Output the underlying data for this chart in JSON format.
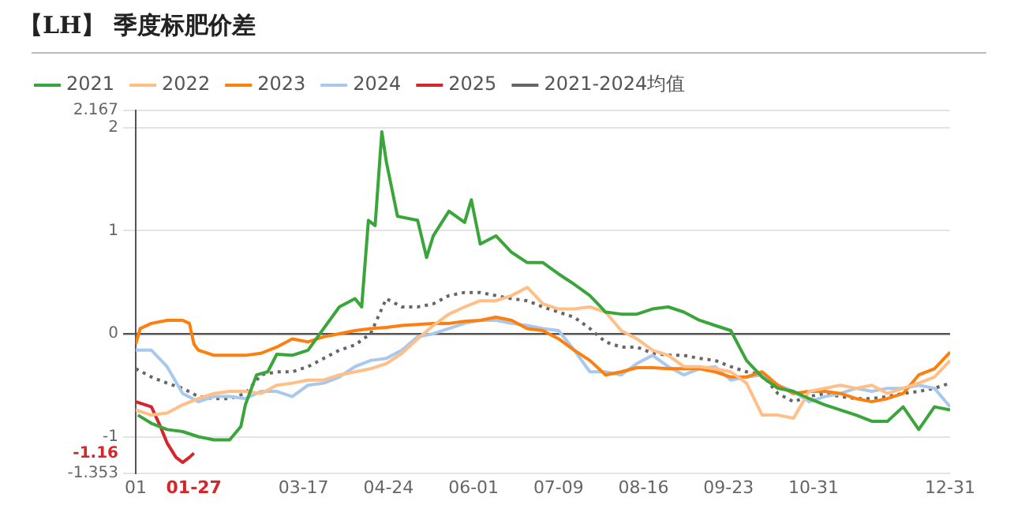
{
  "chart_data": {
    "type": "line",
    "title": "【LH】 季度标肥价差",
    "x": [
      "--01-01",
      "--01-08",
      "--01-15",
      "--01-22",
      "--01-29",
      "--02-05",
      "--02-12",
      "--02-19",
      "--02-26",
      "--03-05",
      "--03-12",
      "--03-19",
      "--03-26",
      "--04-02",
      "--04-09",
      "--04-16",
      "--04-23",
      "--04-30",
      "--05-07",
      "--05-14",
      "--05-21",
      "--05-28",
      "--06-04",
      "--06-11",
      "--06-18",
      "--06-25",
      "--07-02",
      "--07-09",
      "--07-16",
      "--07-23",
      "--07-30",
      "--08-06",
      "--08-13",
      "--08-20",
      "--08-27",
      "--09-03",
      "--09-10",
      "--09-17",
      "--09-24",
      "--10-01",
      "--10-08",
      "--10-15",
      "--10-22",
      "--10-29",
      "--11-05",
      "--11-12",
      "--11-19",
      "--11-26",
      "--12-03",
      "--12-10",
      "--12-17",
      "--12-24",
      "--12-31"
    ],
    "series": [
      {
        "name": "2021",
        "color": "#3aa53a",
        "x": [
          "--01-02",
          "--01-08",
          "--01-15",
          "--01-22",
          "--01-29",
          "--02-05",
          "--02-12",
          "--02-17",
          "--02-19",
          "--02-24",
          "--03-01",
          "--03-05",
          "--03-12",
          "--03-19",
          "--03-26",
          "--04-02",
          "--04-09",
          "--04-12",
          "--04-15",
          "--04-18",
          "--04-21",
          "--04-23",
          "--04-28",
          "--05-07",
          "--05-11",
          "--05-14",
          "--05-21",
          "--05-28",
          "--05-31",
          "--06-04",
          "--06-11",
          "--06-18",
          "--06-25",
          "--07-02",
          "--07-09",
          "--07-16",
          "--07-23",
          "--07-30",
          "--08-06",
          "--08-13",
          "--08-20",
          "--08-27",
          "--09-03",
          "--09-10",
          "--09-17",
          "--09-24",
          "--10-01",
          "--10-08",
          "--10-15",
          "--10-22",
          "--10-29",
          "--11-05",
          "--11-12",
          "--11-19",
          "--11-26",
          "--12-03",
          "--12-10",
          "--12-17",
          "--12-24",
          "--12-31"
        ],
        "values": [
          -0.79,
          -0.87,
          -0.93,
          -0.95,
          -1.0,
          -1.03,
          -1.03,
          -0.9,
          -0.69,
          -0.4,
          -0.37,
          -0.2,
          -0.21,
          -0.16,
          0.05,
          0.26,
          0.34,
          0.26,
          1.1,
          1.05,
          1.96,
          1.67,
          1.14,
          1.1,
          0.74,
          0.95,
          1.19,
          1.08,
          1.3,
          0.87,
          0.95,
          0.79,
          0.69,
          0.69,
          0.58,
          0.48,
          0.37,
          0.21,
          0.19,
          0.19,
          0.24,
          0.26,
          0.21,
          0.13,
          0.08,
          0.03,
          -0.26,
          -0.42,
          -0.53,
          -0.56,
          -0.63,
          -0.69,
          -0.74,
          -0.79,
          -0.85,
          -0.85,
          -0.71,
          -0.93,
          -0.71,
          -0.74
        ]
      },
      {
        "name": "2022",
        "color": "#ffbf86",
        "values": [
          -0.74,
          -0.79,
          -0.77,
          -0.69,
          -0.63,
          -0.58,
          -0.56,
          -0.56,
          -0.58,
          -0.5,
          -0.48,
          -0.45,
          -0.45,
          -0.4,
          -0.37,
          -0.34,
          -0.29,
          -0.19,
          -0.05,
          0.08,
          0.19,
          0.26,
          0.32,
          0.32,
          0.37,
          0.45,
          0.29,
          0.24,
          0.24,
          0.26,
          0.21,
          0.03,
          -0.05,
          -0.16,
          -0.21,
          -0.32,
          -0.32,
          -0.34,
          -0.37,
          -0.48,
          -0.79,
          -0.79,
          -0.82,
          -0.56,
          -0.53,
          -0.5,
          -0.53,
          -0.5,
          -0.58,
          -0.53,
          -0.48,
          -0.42,
          -0.26
        ]
      },
      {
        "name": "2023",
        "color": "#ff7f0e",
        "x": [
          "--01-01",
          "--01-03",
          "--01-08",
          "--01-15",
          "--01-22",
          "--01-25",
          "--01-27",
          "--01-29",
          "--02-05",
          "--02-12",
          "--02-19",
          "--02-26",
          "--03-05",
          "--03-12",
          "--03-19",
          "--03-26",
          "--04-02",
          "--04-09",
          "--04-16",
          "--04-23",
          "--04-30",
          "--05-07",
          "--05-14",
          "--05-21",
          "--05-28",
          "--06-04",
          "--06-11",
          "--06-18",
          "--06-25",
          "--07-02",
          "--07-09",
          "--07-16",
          "--07-23",
          "--07-30",
          "--08-06",
          "--08-13",
          "--08-20",
          "--08-27",
          "--09-03",
          "--09-10",
          "--09-17",
          "--09-24",
          "--10-01",
          "--10-08",
          "--10-15",
          "--10-22",
          "--10-29",
          "--11-05",
          "--11-12",
          "--11-19",
          "--11-26",
          "--12-03",
          "--12-10",
          "--12-17",
          "--12-24",
          "--12-31"
        ],
        "values": [
          -0.1,
          0.05,
          0.1,
          0.13,
          0.13,
          0.1,
          -0.1,
          -0.16,
          -0.21,
          -0.21,
          -0.21,
          -0.19,
          -0.13,
          -0.05,
          -0.08,
          -0.03,
          0,
          0.03,
          0.05,
          0.06,
          0.08,
          0.09,
          0.1,
          0.1,
          0.12,
          0.13,
          0.16,
          0.13,
          0.05,
          0.03,
          -0.05,
          -0.16,
          -0.26,
          -0.4,
          -0.37,
          -0.33,
          -0.33,
          -0.34,
          -0.34,
          -0.34,
          -0.37,
          -0.42,
          -0.42,
          -0.37,
          -0.5,
          -0.58,
          -0.56,
          -0.56,
          -0.58,
          -0.63,
          -0.66,
          -0.63,
          -0.58,
          -0.4,
          -0.34,
          -0.18
        ]
      },
      {
        "name": "2024",
        "color": "#a9c8ee",
        "values": [
          -0.16,
          -0.16,
          -0.32,
          -0.58,
          -0.66,
          -0.61,
          -0.61,
          -0.63,
          -0.56,
          -0.56,
          -0.61,
          -0.5,
          -0.48,
          -0.42,
          -0.32,
          -0.26,
          -0.24,
          -0.16,
          -0.03,
          0,
          0.05,
          0.1,
          0.13,
          0.13,
          0.1,
          0.08,
          0.05,
          0.03,
          -0.16,
          -0.37,
          -0.37,
          -0.4,
          -0.29,
          -0.21,
          -0.32,
          -0.4,
          -0.34,
          -0.32,
          -0.45,
          -0.42,
          -0.4,
          -0.5,
          -0.56,
          -0.66,
          -0.61,
          -0.58,
          -0.53,
          -0.56,
          -0.53,
          -0.53,
          -0.5,
          -0.53,
          -0.71
        ]
      },
      {
        "name": "2025",
        "color": "#d7262b",
        "x": [
          "--01-01",
          "--01-08",
          "--01-12",
          "--01-15",
          "--01-19",
          "--01-22",
          "--01-25",
          "--01-27"
        ],
        "values": [
          -0.66,
          -0.71,
          -0.9,
          -1.06,
          -1.2,
          -1.25,
          -1.2,
          -1.16
        ]
      },
      {
        "name": "2021-2024均值",
        "color": "#666666",
        "line_style": "dotted",
        "values": [
          -0.34,
          -0.42,
          -0.48,
          -0.53,
          -0.61,
          -0.63,
          -0.63,
          -0.58,
          -0.4,
          -0.37,
          -0.37,
          -0.32,
          -0.24,
          -0.16,
          -0.11,
          0,
          0.34,
          0.26,
          0.26,
          0.29,
          0.37,
          0.4,
          0.4,
          0.37,
          0.34,
          0.32,
          0.26,
          0.21,
          0.16,
          0.05,
          -0.08,
          -0.13,
          -0.13,
          -0.19,
          -0.21,
          -0.21,
          -0.24,
          -0.26,
          -0.32,
          -0.37,
          -0.4,
          -0.58,
          -0.66,
          -0.61,
          -0.58,
          -0.61,
          -0.63,
          -0.63,
          -0.61,
          -0.58,
          -0.56,
          -0.53,
          -0.48
        ]
      }
    ],
    "xlim": [
      "--01-01",
      "--12-31"
    ],
    "xticks": [
      {
        "value": "--01-01",
        "label": "01"
      },
      {
        "value": "--01-27",
        "label": "01-27"
      },
      {
        "value": "--03-17",
        "label": "03-17"
      },
      {
        "value": "--04-24",
        "label": "04-24"
      },
      {
        "value": "--06-01",
        "label": "06-01"
      },
      {
        "value": "--07-09",
        "label": "07-09"
      },
      {
        "value": "--08-16",
        "label": "08-16"
      },
      {
        "value": "--09-23",
        "label": "09-23"
      },
      {
        "value": "--10-31",
        "label": "10-31"
      },
      {
        "value": "--12-31",
        "label": "12-31"
      }
    ],
    "ylim": [
      -1.353,
      2.167
    ],
    "yticks": [
      -1.353,
      -1.16,
      -1,
      0,
      1,
      2,
      2.167
    ],
    "grid": "y",
    "legend": "top left",
    "marker": "none",
    "line_style": "solid"
  }
}
